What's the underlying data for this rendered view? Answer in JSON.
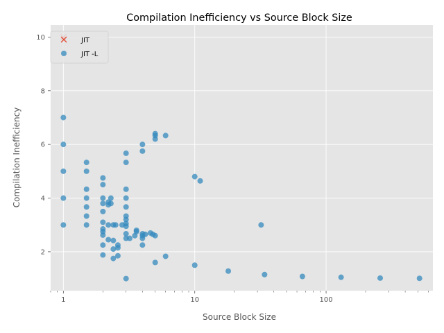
{
  "chart_data": {
    "type": "scatter",
    "title": "Compilation Inefficiency vs Source Block Size",
    "xlabel": "Source Block Size",
    "ylabel": "Compilation Inefficiency",
    "xscale": "log",
    "xlim": [
      0.8,
      650
    ],
    "ylim": [
      0.55,
      10.45
    ],
    "x_ticks": [
      1,
      10,
      100
    ],
    "x_tick_labels": [
      "1",
      "10",
      "100"
    ],
    "y_ticks": [
      2,
      4,
      6,
      8,
      10
    ],
    "y_tick_labels": [
      "2",
      "4",
      "6",
      "8",
      "10"
    ],
    "grid": true,
    "style": "ggplot",
    "legend": {
      "position": "top-left",
      "entries": [
        "JIT",
        "JIT -L"
      ]
    },
    "series": [
      {
        "name": "JIT",
        "marker": "x",
        "color": "#E24A33",
        "points": [
          [
            1,
            10
          ]
        ]
      },
      {
        "name": "JIT -L",
        "marker": "o",
        "color": "#348ABD",
        "points": [
          [
            1,
            7
          ],
          [
            1,
            6
          ],
          [
            1,
            5
          ],
          [
            1,
            4
          ],
          [
            1,
            3
          ],
          [
            1.5,
            5.33
          ],
          [
            1.5,
            5
          ],
          [
            1.5,
            4.33
          ],
          [
            1.5,
            4
          ],
          [
            1.5,
            3.67
          ],
          [
            1.5,
            3.33
          ],
          [
            1.5,
            3
          ],
          [
            2,
            4.75
          ],
          [
            2,
            4.5
          ],
          [
            2,
            4
          ],
          [
            2,
            3.8
          ],
          [
            2,
            3.5
          ],
          [
            2,
            3.1
          ],
          [
            2,
            2.85
          ],
          [
            2,
            2.75
          ],
          [
            2,
            2.62
          ],
          [
            2,
            2.25
          ],
          [
            2,
            1.88
          ],
          [
            2.2,
            3.85
          ],
          [
            2.2,
            3.75
          ],
          [
            2.2,
            3.0
          ],
          [
            2.2,
            2.45
          ],
          [
            2.3,
            4.0
          ],
          [
            2.3,
            3.8
          ],
          [
            2.4,
            3.0
          ],
          [
            2.4,
            2.42
          ],
          [
            2.4,
            2.1
          ],
          [
            2.4,
            1.75
          ],
          [
            2.5,
            3.0
          ],
          [
            2.6,
            2.25
          ],
          [
            2.6,
            2.15
          ],
          [
            2.6,
            1.85
          ],
          [
            2.8,
            3.0
          ],
          [
            3,
            5.67
          ],
          [
            3,
            5.33
          ],
          [
            3,
            4.33
          ],
          [
            3,
            4
          ],
          [
            3,
            3.67
          ],
          [
            3,
            3.33
          ],
          [
            3,
            3.2
          ],
          [
            3,
            3.05
          ],
          [
            3,
            2.95
          ],
          [
            3,
            2.67
          ],
          [
            3,
            2.5
          ],
          [
            3,
            1.0
          ],
          [
            3.2,
            2.5
          ],
          [
            3.5,
            2.6
          ],
          [
            3.6,
            2.8
          ],
          [
            3.6,
            2.75
          ],
          [
            4,
            6
          ],
          [
            4,
            5.75
          ],
          [
            4,
            2.67
          ],
          [
            4,
            2.6
          ],
          [
            4,
            2.5
          ],
          [
            4,
            2.25
          ],
          [
            4.2,
            2.65
          ],
          [
            4.6,
            2.7
          ],
          [
            4.8,
            2.65
          ],
          [
            5,
            6.4
          ],
          [
            5,
            6.33
          ],
          [
            5,
            6.2
          ],
          [
            5,
            2.6
          ],
          [
            5,
            1.6
          ],
          [
            6,
            6.33
          ],
          [
            6,
            1.83
          ],
          [
            10,
            4.8
          ],
          [
            10,
            1.5
          ],
          [
            11,
            4.64
          ],
          [
            18,
            1.28
          ],
          [
            32,
            3.0
          ],
          [
            34,
            1.15
          ],
          [
            66,
            1.08
          ],
          [
            130,
            1.05
          ],
          [
            258,
            1.02
          ],
          [
            514,
            1.01
          ]
        ]
      }
    ]
  }
}
